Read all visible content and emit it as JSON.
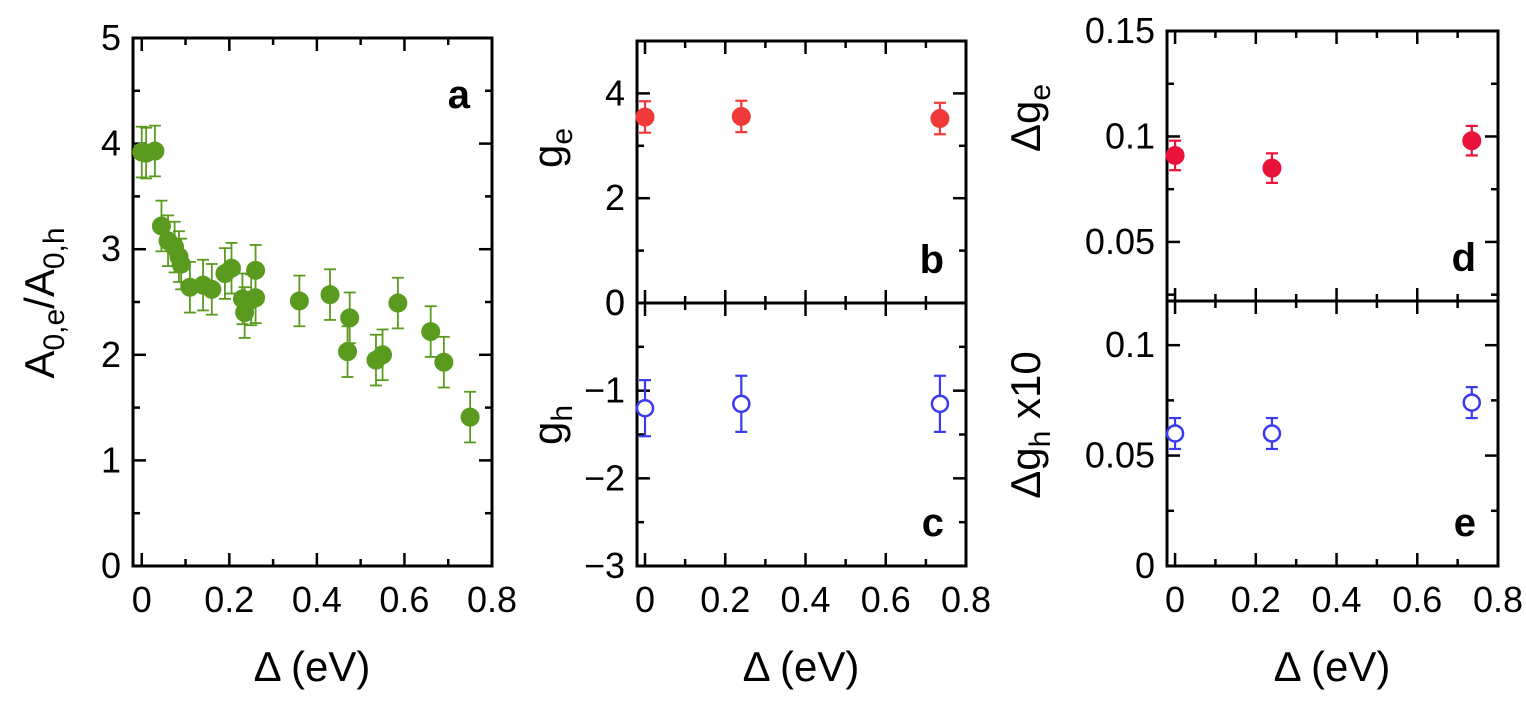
{
  "chart_data": [
    {
      "id": "a",
      "type": "scatter",
      "panel_label": "a",
      "xlabel": "Δ (eV)",
      "ylabel": "A0,e/A0,h",
      "ylabel_parts": {
        "base1": "A",
        "sub1": "0,e",
        "slash": "/",
        "base2": "A",
        "sub2": "0,h"
      },
      "xlim": [
        -0.02,
        0.8
      ],
      "ylim": [
        0,
        5
      ],
      "xticks": [
        0,
        0.2,
        0.4,
        0.6,
        0.8
      ],
      "xtick_labels": [
        "0",
        "0.2",
        "0.4",
        "0.6",
        "0.8"
      ],
      "yticks": [
        0,
        1,
        2,
        3,
        4,
        5
      ],
      "ytick_labels": [
        "0",
        "1",
        "2",
        "3",
        "4",
        "5"
      ],
      "marker": "filled",
      "color": "#5a9a1e",
      "points": [
        {
          "x": 0.0,
          "y": 3.92,
          "err": 0.24
        },
        {
          "x": 0.01,
          "y": 3.91,
          "err": 0.24
        },
        {
          "x": 0.03,
          "y": 3.93,
          "err": 0.24
        },
        {
          "x": 0.045,
          "y": 3.22,
          "err": 0.24
        },
        {
          "x": 0.06,
          "y": 3.08,
          "err": 0.24
        },
        {
          "x": 0.075,
          "y": 3.02,
          "err": 0.24
        },
        {
          "x": 0.085,
          "y": 2.93,
          "err": 0.24
        },
        {
          "x": 0.09,
          "y": 2.86,
          "err": 0.24
        },
        {
          "x": 0.11,
          "y": 2.64,
          "err": 0.24
        },
        {
          "x": 0.14,
          "y": 2.66,
          "err": 0.24
        },
        {
          "x": 0.16,
          "y": 2.62,
          "err": 0.24
        },
        {
          "x": 0.19,
          "y": 2.77,
          "err": 0.24
        },
        {
          "x": 0.205,
          "y": 2.82,
          "err": 0.24
        },
        {
          "x": 0.23,
          "y": 2.53,
          "err": 0.24
        },
        {
          "x": 0.235,
          "y": 2.4,
          "err": 0.24
        },
        {
          "x": 0.25,
          "y": 2.52,
          "err": 0.24
        },
        {
          "x": 0.26,
          "y": 2.8,
          "err": 0.24
        },
        {
          "x": 0.26,
          "y": 2.54,
          "err": 0.24
        },
        {
          "x": 0.36,
          "y": 2.51,
          "err": 0.24
        },
        {
          "x": 0.43,
          "y": 2.57,
          "err": 0.24
        },
        {
          "x": 0.47,
          "y": 2.03,
          "err": 0.24
        },
        {
          "x": 0.475,
          "y": 2.35,
          "err": 0.24
        },
        {
          "x": 0.535,
          "y": 1.95,
          "err": 0.24
        },
        {
          "x": 0.55,
          "y": 2.0,
          "err": 0.24
        },
        {
          "x": 0.585,
          "y": 2.49,
          "err": 0.24
        },
        {
          "x": 0.66,
          "y": 2.22,
          "err": 0.24
        },
        {
          "x": 0.69,
          "y": 1.93,
          "err": 0.24
        },
        {
          "x": 0.75,
          "y": 1.41,
          "err": 0.24
        }
      ]
    },
    {
      "id": "b",
      "type": "scatter",
      "panel_label": "b",
      "xlabel": "",
      "ylabel": "ge",
      "ylabel_parts": {
        "base": "g",
        "sub": "e"
      },
      "xlim": [
        -0.02,
        0.8
      ],
      "ylim": [
        0,
        5
      ],
      "yticks": [
        0,
        2,
        4
      ],
      "ytick_labels": [
        "0",
        "2",
        "4"
      ],
      "ytick_minor": [
        1,
        3,
        5
      ],
      "marker": "filled",
      "color": "#f03a3a",
      "points": [
        {
          "x": 0.0,
          "y": 3.55,
          "err": 0.3
        },
        {
          "x": 0.24,
          "y": 3.56,
          "err": 0.3
        },
        {
          "x": 0.735,
          "y": 3.52,
          "err": 0.3
        }
      ]
    },
    {
      "id": "c",
      "type": "scatter",
      "panel_label": "c",
      "xlabel": "Δ (eV)",
      "ylabel": "gh",
      "ylabel_parts": {
        "base": "g",
        "sub": "h"
      },
      "xlim": [
        -0.02,
        0.8
      ],
      "ylim": [
        -3,
        0
      ],
      "xticks": [
        0,
        0.2,
        0.4,
        0.6,
        0.8
      ],
      "xtick_labels": [
        "0",
        "0.2",
        "0.4",
        "0.6",
        "0.8"
      ],
      "yticks": [
        -3,
        -2,
        -1,
        0
      ],
      "ytick_labels": [
        "−3",
        "−2",
        "−1",
        "0"
      ],
      "ytick_minor": [
        -2.5,
        -1.5,
        -0.5
      ],
      "marker": "open",
      "color": "#3a3aee",
      "points": [
        {
          "x": 0.0,
          "y": -1.2,
          "err": 0.32
        },
        {
          "x": 0.24,
          "y": -1.15,
          "err": 0.32
        },
        {
          "x": 0.735,
          "y": -1.15,
          "err": 0.32
        }
      ]
    },
    {
      "id": "d",
      "type": "scatter",
      "panel_label": "d",
      "xlabel": "",
      "ylabel": "Δge",
      "ylabel_parts": {
        "base": "Δg",
        "sub": "e"
      },
      "xlim": [
        -0.02,
        0.8
      ],
      "ylim": [
        0.022,
        0.15
      ],
      "yticks": [
        0.05,
        0.1,
        0.15
      ],
      "ytick_labels": [
        "0.05",
        "0.1",
        "0.15"
      ],
      "ytick_minor": [
        0.025,
        0.075,
        0.125
      ],
      "marker": "filled",
      "color": "#e8123a",
      "points": [
        {
          "x": 0.0,
          "y": 0.091,
          "err": 0.007
        },
        {
          "x": 0.24,
          "y": 0.085,
          "err": 0.007
        },
        {
          "x": 0.735,
          "y": 0.098,
          "err": 0.007
        }
      ]
    },
    {
      "id": "e",
      "type": "scatter",
      "panel_label": "e",
      "xlabel": "Δ (eV)",
      "ylabel": "Δgh x10",
      "ylabel_parts": {
        "base": "Δg",
        "sub": "h",
        "suffix": " x10"
      },
      "xlim": [
        -0.02,
        0.8
      ],
      "ylim": [
        0,
        0.12
      ],
      "xticks": [
        0,
        0.2,
        0.4,
        0.6,
        0.8
      ],
      "xtick_labels": [
        "0",
        "0.2",
        "0.4",
        "0.6",
        "0.8"
      ],
      "yticks": [
        0,
        0.05,
        0.1
      ],
      "ytick_labels": [
        "0",
        "0.05",
        "0.1"
      ],
      "ytick_minor": [
        0.025,
        0.075
      ],
      "marker": "open",
      "color": "#3a3aee",
      "points": [
        {
          "x": 0.0,
          "y": 0.06,
          "err": 0.007
        },
        {
          "x": 0.24,
          "y": 0.06,
          "err": 0.007
        },
        {
          "x": 0.735,
          "y": 0.074,
          "err": 0.007
        }
      ]
    }
  ]
}
